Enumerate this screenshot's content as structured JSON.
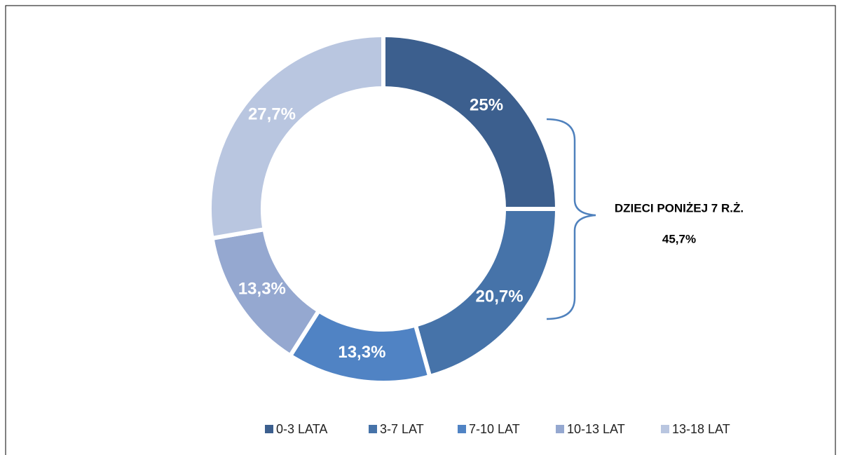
{
  "chart_data": {
    "type": "donut",
    "categories": [
      "0-3 LATA",
      "3-7 LAT",
      "7-10 LAT",
      "10-13 LAT",
      "13-18 LAT"
    ],
    "values": [
      25,
      20.7,
      13.3,
      13.3,
      27.7
    ],
    "value_labels": [
      "25%",
      "20,7%",
      "13,3%",
      "13,3%",
      "27,7%"
    ],
    "colors": [
      "#3c5f8e",
      "#4673a9",
      "#5083c4",
      "#95a8d0",
      "#b9c6e0"
    ],
    "annotations": [
      "DZIECI PONIŻEJ 7 R.Ż.",
      "45,7%"
    ],
    "legend": "bottom"
  }
}
